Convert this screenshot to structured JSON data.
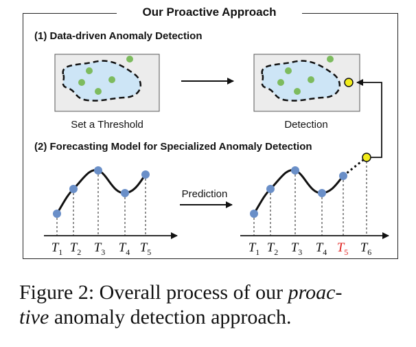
{
  "title": "Our Proactive Approach",
  "section1": {
    "heading": "(1) Data-driven Anomaly Detection",
    "left_label": "Set a Threshold",
    "right_label": "Detection"
  },
  "section2": {
    "heading": "(2) Forecasting Model for Specialized Anomaly Detection",
    "arrow_label": "Prediction"
  },
  "left_timeline": {
    "ticks": [
      {
        "base": "T",
        "sub": "1"
      },
      {
        "base": "T",
        "sub": "2"
      },
      {
        "base": "T",
        "sub": "3"
      },
      {
        "base": "T",
        "sub": "4"
      },
      {
        "base": "T",
        "sub": "5"
      }
    ]
  },
  "right_timeline": {
    "ticks": [
      {
        "base": "T",
        "sub": "1",
        "color": "#111111"
      },
      {
        "base": "T",
        "sub": "2",
        "color": "#111111"
      },
      {
        "base": "T",
        "sub": "3",
        "color": "#111111"
      },
      {
        "base": "T",
        "sub": "4",
        "color": "#111111"
      },
      {
        "base": "T",
        "sub": "5",
        "color": "#e0201e"
      },
      {
        "base": "T",
        "sub": "6",
        "color": "#111111"
      }
    ]
  },
  "caption": {
    "prefix": "Figure 2: Overall process of our ",
    "italic1": "proac-",
    "italic2": "tive",
    "suffix": " anomaly detection approach."
  },
  "colors": {
    "node_blue": "#6a8fc8",
    "normal_green": "#7dbb5e",
    "anomaly_yellow": "#f2ec1a",
    "panel_bg": "#ececec",
    "cluster_fill": "#cde5f6",
    "highlight_red": "#e0201e"
  }
}
